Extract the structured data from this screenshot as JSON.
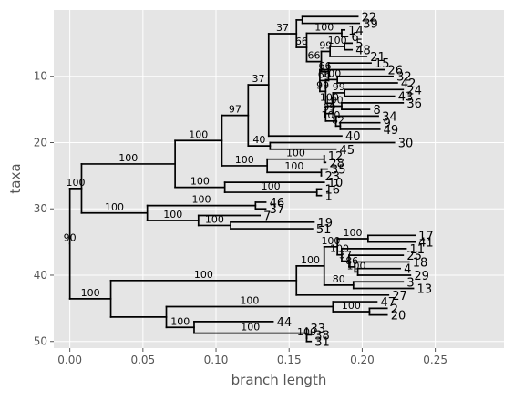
{
  "chart_data": {
    "type": "tree",
    "xlabel": "branch length",
    "ylabel": "taxa",
    "xlim": [
      -0.011,
      0.297
    ],
    "ylim": [
      51,
      0
    ],
    "grid": true,
    "xticks": [
      0.0,
      0.05,
      0.1,
      0.15,
      0.2,
      0.25
    ],
    "xtick_labels": [
      "0.00",
      "0.05",
      "0.10",
      "0.15",
      "0.20",
      "0.25"
    ],
    "yticks": [
      10,
      20,
      30,
      40,
      50
    ],
    "ytick_labels": [
      "10",
      "20",
      "30",
      "40",
      "50"
    ],
    "root": {
      "x": 0.0,
      "bs": "90",
      "c": [
        {
          "x": 0.008,
          "bs": "100",
          "c": [
            {
              "x": 0.072,
              "bs": "100",
              "c": [
                {
                  "x": 0.104,
                  "bs": "100",
                  "c": [
                    {
                      "x": 0.122,
                      "bs": "97",
                      "c": [
                        {
                          "x": 0.136,
                          "bs": "37",
                          "c": [
                            {
                              "x": 0.155,
                              "bs": "37",
                              "c": [
                                {
                                  "x": 0.159,
                                  "c": [
                                    {
                                      "x": 0.197,
                                      "label": "22"
                                    },
                                    {
                                      "x": 0.198,
                                      "label": "39"
                                    }
                                  ]
                                },
                                {
                                  "x": 0.162,
                                  "bs": "66",
                                  "c": [
                                    {
                                      "x": 0.186,
                                      "bs": "100",
                                      "c": [
                                        {
                                          "x": 0.188,
                                          "label": "14"
                                        },
                                        {
                                          "x": 0.19,
                                          "label": "6"
                                        }
                                      ]
                                    },
                                    {
                                      "x": 0.172,
                                      "bs": "66",
                                      "c": [
                                        {
                                          "x": 0.178,
                                          "bs": "99",
                                          "c": [
                                            {
                                              "x": 0.188,
                                              "bs": "100",
                                              "c": [
                                                {
                                                  "x": 0.193,
                                                  "label": "5"
                                                },
                                                {
                                                  "x": 0.193,
                                                  "label": "48"
                                                }
                                              ]
                                            },
                                            {
                                              "x": 0.203,
                                              "label": "21"
                                            }
                                          ]
                                        },
                                        {
                                          "x": 0.177,
                                          "bs": "66",
                                          "c": [
                                            {
                                              "x": 0.206,
                                              "label": "15"
                                            },
                                            {
                                              "x": 0.171,
                                              "bs": "66",
                                              "c": [
                                                {
                                                  "x": 0.215,
                                                  "label": "26"
                                                },
                                                {
                                                  "x": 0.175,
                                                  "bs": "99",
                                                  "c": [
                                                    {
                                                      "x": 0.183,
                                                      "bs": "100",
                                                      "c": [
                                                        {
                                                          "x": 0.221,
                                                          "label": "32"
                                                        },
                                                        {
                                                          "x": 0.224,
                                                          "label": "42"
                                                        }
                                                      ]
                                                    },
                                                    {
                                                      "x": 0.18,
                                                      "bs": "100",
                                                      "c": [
                                                        {
                                                          "x": 0.188,
                                                          "bs": "99",
                                                          "c": [
                                                            {
                                                              "x": 0.228,
                                                              "label": "24"
                                                            },
                                                            {
                                                              "x": 0.222,
                                                              "label": "43"
                                                            }
                                                          ]
                                                        },
                                                        {
                                                          "x": 0.175,
                                                          "bs": "99",
                                                          "c": [
                                                            {
                                                              "x": 0.186,
                                                              "bs": "100",
                                                              "c": [
                                                                {
                                                                  "x": 0.228,
                                                                  "label": "36"
                                                                },
                                                                {
                                                                  "x": 0.205,
                                                                  "label": "8"
                                                                }
                                                              ]
                                                            },
                                                            {
                                                              "x": 0.182,
                                                              "bs": "100",
                                                              "c": [
                                                                {
                                                                  "x": 0.211,
                                                                  "label": "34"
                                                                },
                                                                {
                                                                  "x": 0.185,
                                                                  "bs": "82",
                                                                  "c": [
                                                                    {
                                                                      "x": 0.212,
                                                                      "label": "9"
                                                                    },
                                                                    {
                                                                      "x": 0.212,
                                                                      "label": "49"
                                                                    }
                                                                  ]
                                                                }
                                                              ]
                                                            }
                                                          ]
                                                        }
                                                      ]
                                                    }
                                                  ]
                                                }
                                              ]
                                            }
                                          ]
                                        }
                                      ]
                                    }
                                  ]
                                }
                              ]
                            },
                            {
                              "x": 0.186,
                              "label": "40"
                            }
                          ]
                        },
                        {
                          "x": 0.137,
                          "bs": "40",
                          "c": [
                            {
                              "x": 0.222,
                              "label": "30"
                            },
                            {
                              "x": 0.182,
                              "label": "45"
                            }
                          ]
                        }
                      ]
                    },
                    {
                      "x": 0.135,
                      "bs": "100",
                      "c": [
                        {
                          "x": 0.174,
                          "bs": "100",
                          "c": [
                            {
                              "x": 0.174,
                              "label": "12"
                            },
                            {
                              "x": 0.175,
                              "label": "28"
                            }
                          ]
                        },
                        {
                          "x": 0.172,
                          "bs": "100",
                          "c": [
                            {
                              "x": 0.176,
                              "label": "35"
                            },
                            {
                              "x": 0.172,
                              "label": "23"
                            }
                          ]
                        }
                      ]
                    }
                  ]
                },
                {
                  "x": 0.106,
                  "bs": "100",
                  "c": [
                    {
                      "x": 0.174,
                      "label": "10"
                    },
                    {
                      "x": 0.169,
                      "bs": "100",
                      "c": [
                        {
                          "x": 0.172,
                          "label": "16"
                        },
                        {
                          "x": 0.172,
                          "label": "1"
                        }
                      ]
                    }
                  ]
                }
              ]
            },
            {
              "x": 0.053,
              "bs": "100",
              "c": [
                {
                  "x": 0.127,
                  "bs": "100",
                  "c": [
                    {
                      "x": 0.134,
                      "label": "46"
                    },
                    {
                      "x": 0.134,
                      "label": "37"
                    }
                  ]
                },
                {
                  "x": 0.088,
                  "bs": "100",
                  "c": [
                    {
                      "x": 0.13,
                      "label": "7"
                    },
                    {
                      "x": 0.11,
                      "bs": "100",
                      "c": [
                        {
                          "x": 0.167,
                          "label": "19"
                        },
                        {
                          "x": 0.166,
                          "label": "51"
                        }
                      ]
                    }
                  ]
                }
              ]
            }
          ]
        },
        {
          "x": 0.028,
          "bs": "100",
          "c": [
            {
              "x": 0.155,
              "bs": "100",
              "c": [
                {
                  "x": 0.174,
                  "bs": "100",
                  "c": [
                    {
                      "x": 0.183,
                      "bs": "100",
                      "c": [
                        {
                          "x": 0.204,
                          "bs": "100",
                          "c": [
                            {
                              "x": 0.236,
                              "label": "17"
                            },
                            {
                              "x": 0.236,
                              "label": "41"
                            }
                          ]
                        },
                        {
                          "x": 0.186,
                          "bs": "100",
                          "c": [
                            {
                              "x": 0.23,
                              "label": "11"
                            },
                            {
                              "x": 0.191,
                              "bs": "37",
                              "c": [
                                {
                                  "x": 0.228,
                                  "label": "25"
                                },
                                {
                                  "x": 0.195,
                                  "bs": "86",
                                  "c": [
                                    {
                                      "x": 0.232,
                                      "label": "18"
                                    },
                                    {
                                      "x": 0.197,
                                      "bs": "100",
                                      "c": [
                                        {
                                          "x": 0.226,
                                          "label": "4"
                                        },
                                        {
                                          "x": 0.233,
                                          "label": "29"
                                        }
                                      ]
                                    }
                                  ]
                                }
                              ]
                            }
                          ]
                        }
                      ]
                    },
                    {
                      "x": 0.194,
                      "bs": "80",
                      "c": [
                        {
                          "x": 0.228,
                          "label": "3"
                        },
                        {
                          "x": 0.235,
                          "label": "13"
                        }
                      ]
                    }
                  ]
                },
                {
                  "x": 0.218,
                  "label": "27"
                }
              ]
            },
            {
              "x": 0.066,
              "c": [
                {
                  "x": 0.18,
                  "bs": "100",
                  "c": [
                    {
                      "x": 0.21,
                      "label": "47"
                    },
                    {
                      "x": 0.205,
                      "bs": "100",
                      "c": [
                        {
                          "x": 0.217,
                          "label": "2"
                        },
                        {
                          "x": 0.217,
                          "label": "20"
                        }
                      ]
                    }
                  ]
                },
                {
                  "x": 0.085,
                  "bs": "100",
                  "c": [
                    {
                      "x": 0.139,
                      "label": "44"
                    },
                    {
                      "x": 0.162,
                      "bs": "100",
                      "c": [
                        {
                          "x": 0.162,
                          "label": "33"
                        },
                        {
                          "x": 0.162,
                          "bs": "100",
                          "c": [
                            {
                              "x": 0.165,
                              "label": "38"
                            },
                            {
                              "x": 0.165,
                              "label": "31"
                            }
                          ]
                        }
                      ]
                    }
                  ]
                }
              ]
            }
          ]
        }
      ]
    }
  }
}
